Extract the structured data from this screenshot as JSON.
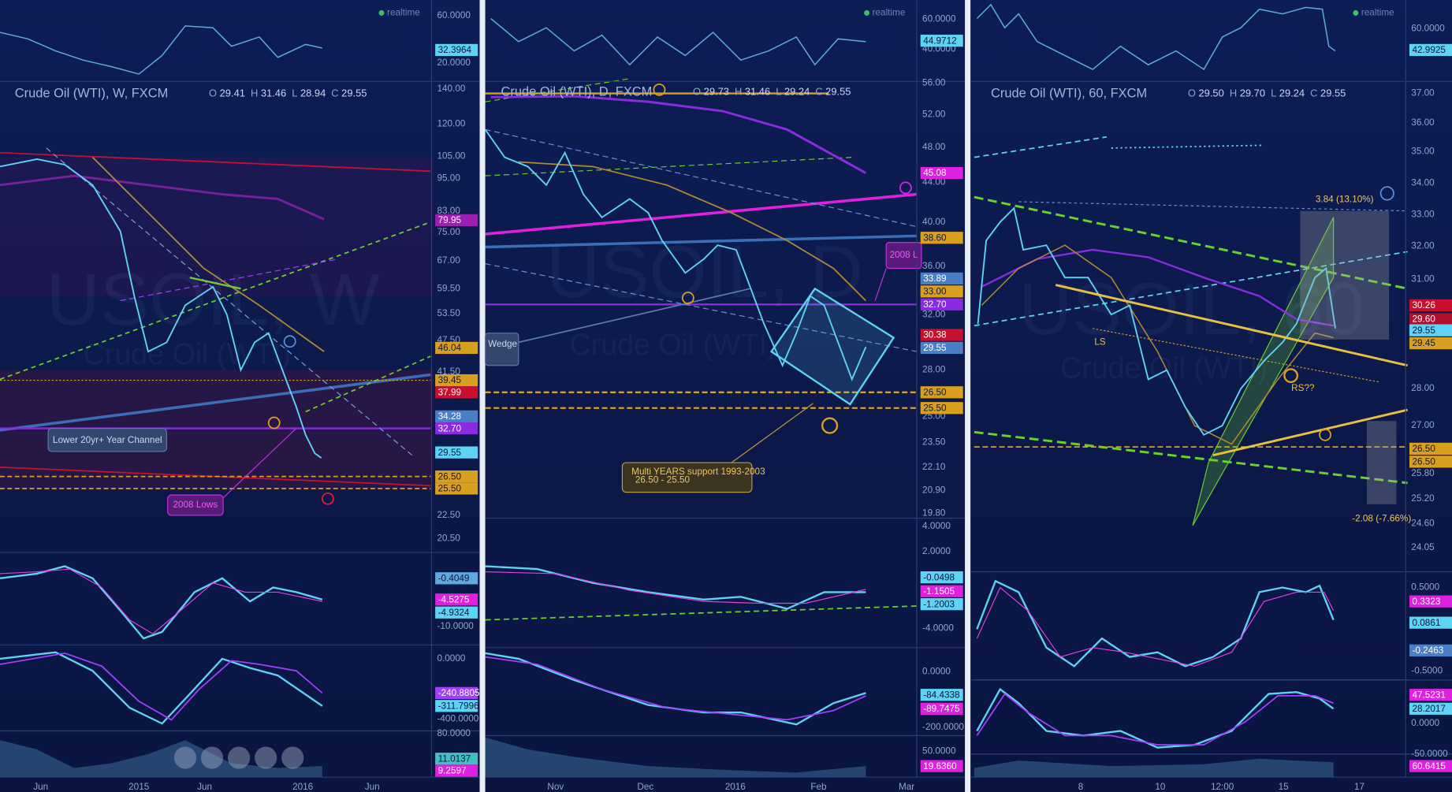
{
  "panels": [
    {
      "status": "realtime",
      "osc_ticks": [
        "60.0000",
        "20.0000"
      ],
      "osc_value": "32.3964",
      "title": "Crude Oil (WTI), W, FXCM",
      "ohlc": [
        {
          "k": "O",
          "v": "29.41"
        },
        {
          "k": "H",
          "v": "31.46"
        },
        {
          "k": "L",
          "v": "28.94"
        },
        {
          "k": "C",
          "v": "29.55"
        }
      ],
      "watermark": [
        "USOIL, W",
        "Crude Oil (WTI)"
      ],
      "price_ticks": [
        "140.00",
        "120.00",
        "105.00",
        "95.00",
        "83.00",
        "75.00",
        "67.00",
        "59.50",
        "53.50",
        "47.50",
        "41.50",
        "22.50",
        "20.50"
      ],
      "price_tags": [
        "79.95",
        "46.04",
        "39.45",
        "37.99",
        "34.28",
        "32.70",
        "29.55",
        "26.50",
        "25.50"
      ],
      "annotations": [
        "Lower 20yr+ Year Channel",
        "2008 Lows"
      ],
      "macd_ticks": [
        "-10.0000"
      ],
      "macd_tags": [
        "-0.4049",
        "-4.5275",
        "-4.9324"
      ],
      "stoch_ticks": [
        "0.0000",
        "-400.0000"
      ],
      "stoch_tags": [
        "-240.8805",
        "-311.7996"
      ],
      "vol_ticks": [
        "80.0000"
      ],
      "vol_tags": [
        "11.0137",
        "9.2597"
      ],
      "time_labels": [
        "Jun",
        "2015",
        "Jun",
        "2016",
        "Jun"
      ]
    },
    {
      "status": "realtime",
      "osc_ticks": [
        "60.0000",
        "40.0000"
      ],
      "osc_value": "44.9712",
      "title": "Crude Oil (WTI), D, FXCM",
      "ohlc": [
        {
          "k": "O",
          "v": "29.73"
        },
        {
          "k": "H",
          "v": "31.46"
        },
        {
          "k": "L",
          "v": "29.24"
        },
        {
          "k": "C",
          "v": "29.55"
        }
      ],
      "watermark": [
        "USOIL, D",
        "Crude Oil (WTI)"
      ],
      "price_ticks": [
        "56.00",
        "52.00",
        "48.00",
        "44.00",
        "40.00",
        "36.00",
        "32.00",
        "28.00",
        "25.00",
        "23.50",
        "22.10",
        "20.90",
        "19.80"
      ],
      "price_tags": [
        "45.08",
        "38.60",
        "33.89",
        "33.00",
        "32.70",
        "30.38",
        "29.55",
        "26.50",
        "25.50"
      ],
      "annotations": [
        "2008 L",
        "Wedge",
        "Multi YEARS  support 1993-2003",
        "26.50 -  25.50"
      ],
      "macd_ticks": [
        "4.0000",
        "2.0000",
        "-4.0000"
      ],
      "macd_tags": [
        "-0.0498",
        "-1.1505",
        "-1.2003"
      ],
      "stoch_ticks": [
        "0.0000",
        "-200.0000"
      ],
      "stoch_tags": [
        "-84.4338",
        "-89.7475"
      ],
      "vol_ticks": [
        "50.0000"
      ],
      "vol_tags": [
        "19.6360"
      ],
      "time_labels": [
        "Nov",
        "Dec",
        "2016",
        "Feb",
        "Mar"
      ]
    },
    {
      "status": "realtime",
      "osc_ticks": [
        "60.0000"
      ],
      "osc_value": "42.9925",
      "title": "Crude Oil (WTI), 60, FXCM",
      "ohlc": [
        {
          "k": "O",
          "v": "29.50"
        },
        {
          "k": "H",
          "v": "29.70"
        },
        {
          "k": "L",
          "v": "29.24"
        },
        {
          "k": "C",
          "v": "29.55"
        }
      ],
      "watermark": [
        "USOIL, 60",
        "Crude Oil (WTI)"
      ],
      "price_ticks": [
        "37.00",
        "36.00",
        "35.00",
        "34.00",
        "33.00",
        "32.00",
        "31.00",
        "28.00",
        "27.00",
        "25.80",
        "25.20",
        "24.60",
        "24.05"
      ],
      "price_tags": [
        "30.26",
        "29.60",
        "29.55",
        "29.45",
        "26.50",
        "26.50"
      ],
      "annotations": [
        "3.84 (13.10%)",
        "-2.08 (-7.66%)",
        "LS",
        "RS??"
      ],
      "macd_ticks": [
        "0.5000",
        "-0.5000"
      ],
      "macd_tags": [
        "0.3323",
        "0.0861",
        "-0.2463"
      ],
      "stoch_ticks": [
        "0.0000",
        "-50.0000"
      ],
      "stoch_tags": [
        "47.5231",
        "28.2017"
      ],
      "vol_ticks": [],
      "vol_tags": [
        "60.6415"
      ],
      "time_labels": [
        "8",
        "10",
        "12:00",
        "15",
        "17"
      ]
    }
  ]
}
